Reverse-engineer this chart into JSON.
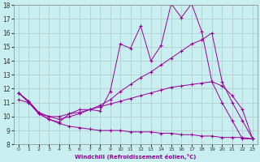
{
  "xlabel": "Windchill (Refroidissement éolien,°C)",
  "bg_color": "#c8eef0",
  "grid_color": "#b0c8c8",
  "line_color": "#990099",
  "xmin": -0.5,
  "xmax": 23.5,
  "ymin": 8,
  "ymax": 18,
  "yticks": [
    8,
    9,
    10,
    11,
    12,
    13,
    14,
    15,
    16,
    17,
    18
  ],
  "xticks": [
    0,
    1,
    2,
    3,
    4,
    5,
    6,
    7,
    8,
    9,
    10,
    11,
    12,
    13,
    14,
    15,
    16,
    17,
    18,
    19,
    20,
    21,
    22,
    23
  ],
  "series": [
    {
      "x": [
        0,
        1,
        2,
        3,
        4,
        5,
        6,
        7,
        8,
        9,
        10,
        11,
        12,
        13,
        14,
        15,
        16,
        17,
        18,
        19,
        20,
        21,
        22,
        23
      ],
      "y": [
        11.7,
        11.1,
        10.2,
        9.8,
        9.6,
        10.2,
        10.5,
        10.5,
        10.4,
        11.8,
        15.2,
        14.9,
        16.5,
        14.0,
        15.1,
        18.1,
        17.1,
        18.1,
        16.1,
        12.5,
        11.0,
        9.7,
        8.4,
        8.4
      ]
    },
    {
      "x": [
        0,
        1,
        2,
        3,
        4,
        5,
        6,
        7,
        8,
        9,
        10,
        11,
        12,
        13,
        14,
        15,
        16,
        17,
        18,
        19,
        20,
        21,
        22,
        23
      ],
      "y": [
        11.7,
        11.1,
        10.3,
        10.0,
        9.8,
        10.0,
        10.2,
        10.5,
        10.8,
        11.2,
        11.8,
        12.3,
        12.8,
        13.2,
        13.7,
        14.2,
        14.7,
        15.2,
        15.5,
        16.0,
        12.5,
        11.0,
        9.7,
        8.4
      ]
    },
    {
      "x": [
        0,
        1,
        2,
        3,
        4,
        5,
        6,
        7,
        8,
        9,
        10,
        11,
        12,
        13,
        14,
        15,
        16,
        17,
        18,
        19,
        20,
        21,
        22,
        23
      ],
      "y": [
        11.2,
        11.0,
        10.2,
        10.0,
        10.0,
        10.2,
        10.3,
        10.5,
        10.7,
        10.9,
        11.1,
        11.3,
        11.5,
        11.7,
        11.9,
        12.1,
        12.2,
        12.3,
        12.4,
        12.5,
        12.2,
        11.5,
        10.5,
        8.4
      ]
    },
    {
      "x": [
        0,
        1,
        2,
        3,
        4,
        5,
        6,
        7,
        8,
        9,
        10,
        11,
        12,
        13,
        14,
        15,
        16,
        17,
        18,
        19,
        20,
        21,
        22,
        23
      ],
      "y": [
        11.7,
        11.0,
        10.2,
        9.8,
        9.5,
        9.3,
        9.2,
        9.1,
        9.0,
        9.0,
        9.0,
        8.9,
        8.9,
        8.9,
        8.8,
        8.8,
        8.7,
        8.7,
        8.6,
        8.6,
        8.5,
        8.5,
        8.5,
        8.4
      ]
    }
  ]
}
